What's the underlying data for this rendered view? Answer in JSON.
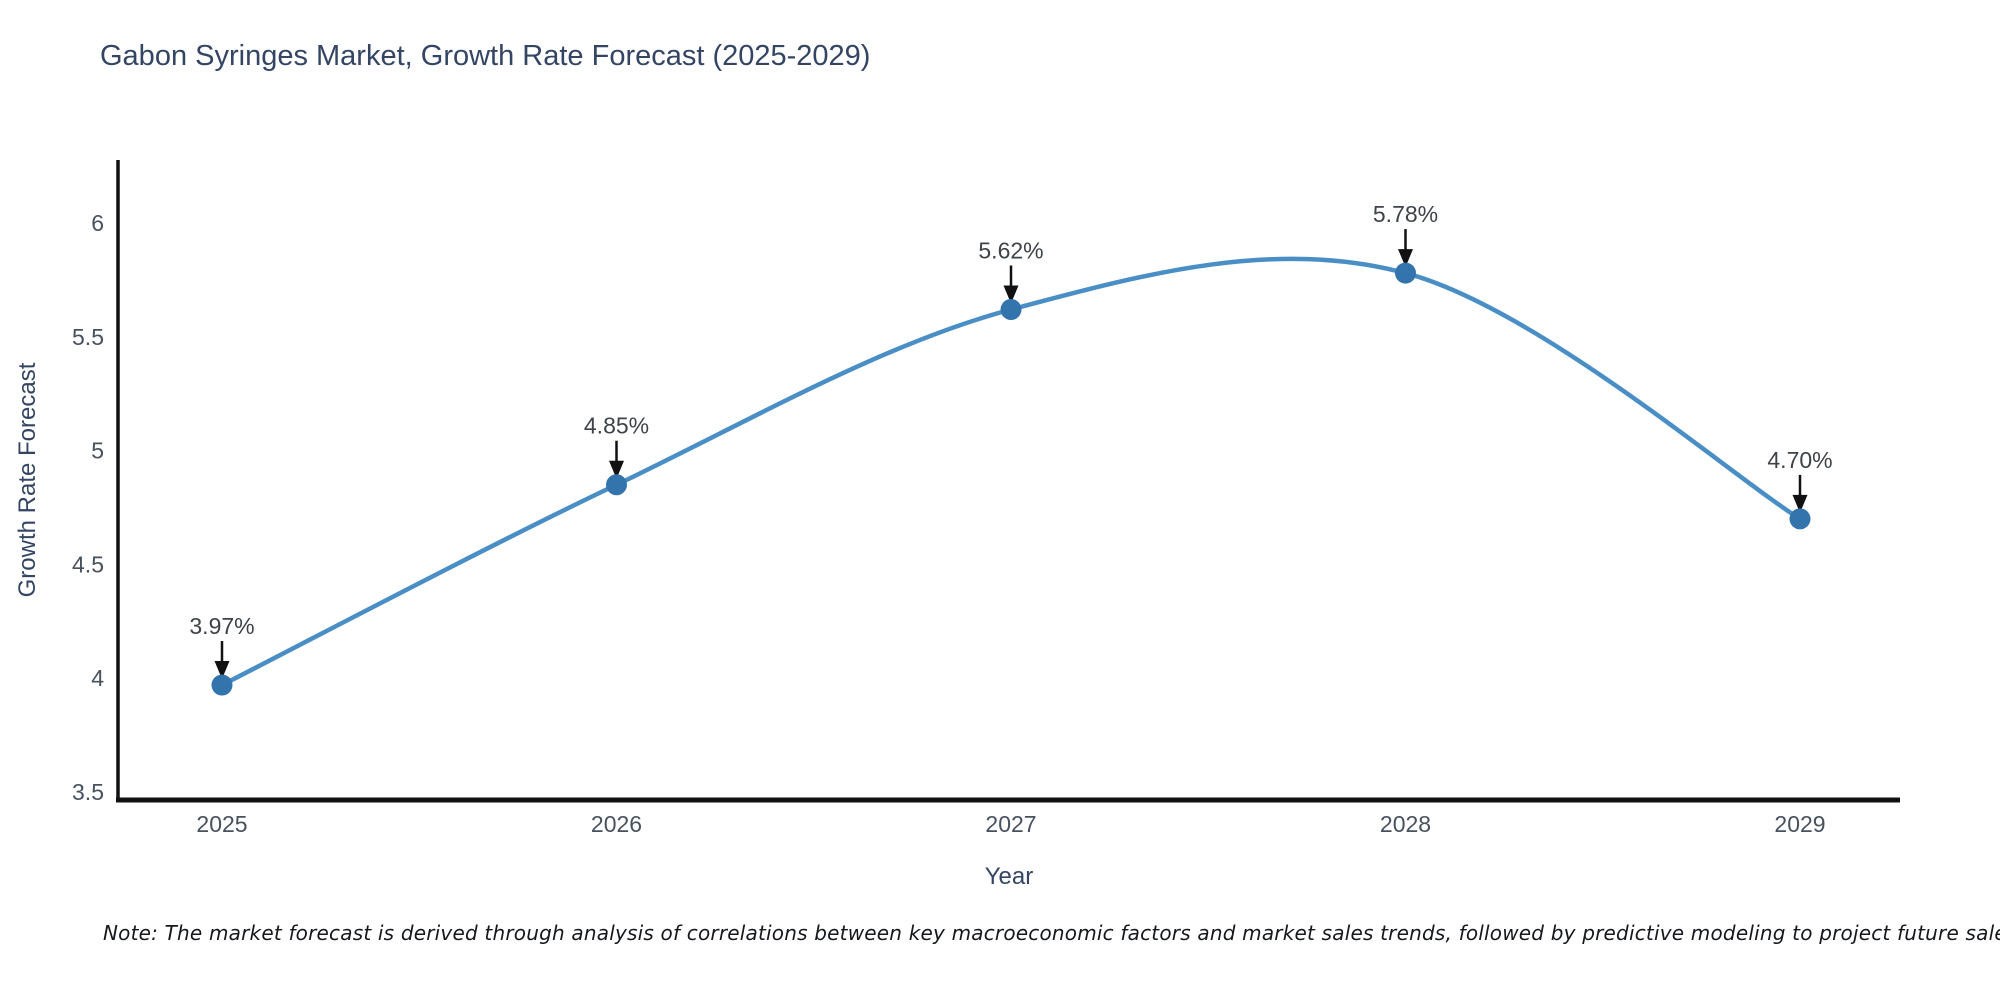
{
  "note": {
    "text": "Note: The market forecast is derived through analysis of correlations between key macroeconomic factors and market sales trends, followed by predictive modeling to project future sales"
  },
  "chart_data": {
    "type": "line",
    "title": "Gabon Syringes Market, Growth Rate Forecast (2025-2029)",
    "xlabel": "Year",
    "ylabel": "Growth Rate Forecast",
    "categories": [
      "2025",
      "2026",
      "2027",
      "2028",
      "2029"
    ],
    "values": [
      3.97,
      4.85,
      5.62,
      5.78,
      4.7
    ],
    "point_labels": [
      "3.97%",
      "4.85%",
      "5.62%",
      "5.78%",
      "4.70%"
    ],
    "ylim": [
      3.5,
      6
    ],
    "yticks": [
      3.5,
      4,
      4.5,
      5,
      5.5,
      6
    ],
    "grid": false,
    "legend": "none",
    "line_shape": "spline",
    "colors": {
      "line": "#4a8ec6",
      "marker": "#3374ad",
      "axis": "#111111",
      "tick_text": "#47525e",
      "annotation_text": "#3d4349",
      "arrow": "#111111",
      "title_text": "#344563"
    }
  }
}
